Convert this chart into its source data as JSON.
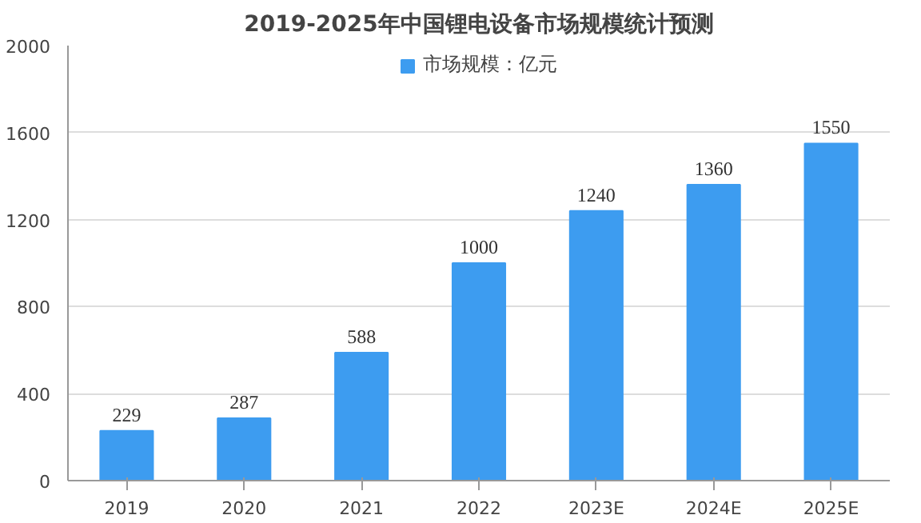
{
  "chart_data": {
    "type": "bar",
    "title": "2019-2025年中国锂电设备市场规模统计预测",
    "categories": [
      "2019",
      "2020",
      "2021",
      "2022",
      "2023E",
      "2024E",
      "2025E"
    ],
    "series": [
      {
        "name": "市场规模：亿元",
        "color": "#3d9cf0",
        "values": [
          229,
          287,
          588,
          1000,
          1240,
          1360,
          1550
        ]
      }
    ],
    "ylim": [
      0,
      2000
    ],
    "yticks": [
      0,
      400,
      800,
      1200,
      1600,
      2000
    ],
    "grid": "y",
    "legend": "top",
    "data_labels": true
  }
}
